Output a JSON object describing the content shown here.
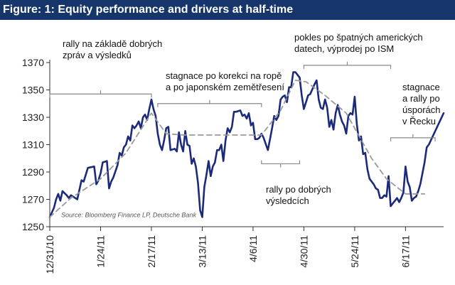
{
  "chart_data": {
    "type": "line",
    "title": "Figure: 1: Equity performance and drivers at half-time",
    "source": "Source: Bloomberg Finance LP, Deutsche Bank",
    "ylim": [
      1250,
      1370
    ],
    "yticks": [
      1250,
      1270,
      1290,
      1310,
      1330,
      1350,
      1370
    ],
    "xlim": [
      "2010-12-31",
      "2011-07-05"
    ],
    "xticks": [
      {
        "date": "2010-12-31",
        "label": "12/31/10"
      },
      {
        "date": "2011-01-24",
        "label": "1/24/11"
      },
      {
        "date": "2011-02-17",
        "label": "2/17/11"
      },
      {
        "date": "2011-03-13",
        "label": "3/13/11"
      },
      {
        "date": "2011-04-06",
        "label": "4/6/11"
      },
      {
        "date": "2011-04-30",
        "label": "4/30/11"
      },
      {
        "date": "2011-05-24",
        "label": "5/24/11"
      },
      {
        "date": "2011-06-17",
        "label": "6/17/11"
      }
    ],
    "grid": false,
    "series": [
      {
        "style": "solid",
        "color": "#1b2a7a",
        "points": [
          [
            "2010-12-31",
            1257
          ],
          [
            "2011-01-02",
            1264
          ],
          [
            "2011-01-03",
            1270
          ],
          [
            "2011-01-04",
            1274
          ],
          [
            "2011-01-05",
            1269
          ],
          [
            "2011-01-06",
            1276
          ],
          [
            "2011-01-08",
            1273
          ],
          [
            "2011-01-09",
            1271
          ],
          [
            "2011-01-10",
            1273
          ],
          [
            "2011-01-12",
            1271
          ],
          [
            "2011-01-13",
            1270
          ],
          [
            "2011-01-15",
            1284
          ],
          [
            "2011-01-16",
            1283
          ],
          [
            "2011-01-18",
            1293
          ],
          [
            "2011-01-21",
            1294
          ],
          [
            "2011-01-22",
            1281
          ],
          [
            "2011-01-23",
            1284
          ],
          [
            "2011-01-24",
            1289
          ],
          [
            "2011-01-25",
            1297
          ],
          [
            "2011-01-27",
            1298
          ],
          [
            "2011-01-28",
            1278
          ],
          [
            "2011-01-29",
            1283
          ],
          [
            "2011-01-30",
            1286
          ],
          [
            "2011-02-01",
            1295
          ],
          [
            "2011-02-02",
            1304
          ],
          [
            "2011-02-03",
            1302
          ],
          [
            "2011-02-04",
            1308
          ],
          [
            "2011-02-05",
            1310
          ],
          [
            "2011-02-06",
            1316
          ],
          [
            "2011-02-07",
            1313
          ],
          [
            "2011-02-08",
            1324
          ],
          [
            "2011-02-09",
            1322
          ],
          [
            "2011-02-10",
            1324
          ],
          [
            "2011-02-11",
            1327
          ],
          [
            "2011-02-12",
            1322
          ],
          [
            "2011-02-13",
            1330
          ],
          [
            "2011-02-14",
            1332
          ],
          [
            "2011-02-15",
            1328
          ],
          [
            "2011-02-16",
            1336
          ],
          [
            "2011-02-17",
            1343
          ],
          [
            "2011-02-18",
            1336
          ],
          [
            "2011-02-19",
            1331
          ],
          [
            "2011-02-20",
            1318
          ],
          [
            "2011-02-21",
            1310
          ],
          [
            "2011-02-22",
            1306
          ],
          [
            "2011-02-23",
            1313
          ],
          [
            "2011-02-24",
            1322
          ],
          [
            "2011-02-25",
            1323
          ],
          [
            "2011-02-26",
            1306
          ],
          [
            "2011-02-28",
            1307
          ],
          [
            "2011-03-01",
            1305
          ],
          [
            "2011-03-02",
            1319
          ],
          [
            "2011-03-03",
            1310
          ],
          [
            "2011-03-04",
            1305
          ],
          [
            "2011-03-05",
            1320
          ],
          [
            "2011-03-06",
            1310
          ],
          [
            "2011-03-07",
            1309
          ],
          [
            "2011-03-08",
            1296
          ],
          [
            "2011-03-09",
            1300
          ],
          [
            "2011-03-10",
            1294
          ],
          [
            "2011-03-11",
            1282
          ],
          [
            "2011-03-12",
            1262
          ],
          [
            "2011-03-13",
            1257
          ],
          [
            "2011-03-14",
            1279
          ],
          [
            "2011-03-15",
            1288
          ],
          [
            "2011-03-16",
            1298
          ],
          [
            "2011-03-17",
            1287
          ],
          [
            "2011-03-18",
            1294
          ],
          [
            "2011-03-19",
            1297
          ],
          [
            "2011-03-20",
            1306
          ],
          [
            "2011-03-21",
            1306
          ],
          [
            "2011-03-22",
            1310
          ],
          [
            "2011-03-23",
            1298
          ],
          [
            "2011-03-24",
            1313
          ],
          [
            "2011-03-25",
            1322
          ],
          [
            "2011-03-26",
            1319
          ],
          [
            "2011-03-27",
            1323
          ],
          [
            "2011-03-28",
            1334
          ],
          [
            "2011-03-29",
            1334
          ],
          [
            "2011-03-31",
            1335
          ],
          [
            "2011-04-01",
            1331
          ],
          [
            "2011-04-02",
            1332
          ],
          [
            "2011-04-03",
            1329
          ],
          [
            "2011-04-04",
            1333
          ],
          [
            "2011-04-05",
            1324
          ],
          [
            "2011-04-06",
            1326
          ],
          [
            "2011-04-07",
            1314
          ],
          [
            "2011-04-08",
            1314
          ],
          [
            "2011-04-09",
            1315
          ],
          [
            "2011-04-10",
            1318
          ],
          [
            "2011-04-11",
            1315
          ],
          [
            "2011-04-13",
            1306
          ],
          [
            "2011-04-14",
            1314
          ],
          [
            "2011-04-15",
            1322
          ],
          [
            "2011-04-16",
            1331
          ],
          [
            "2011-04-17",
            1328
          ],
          [
            "2011-04-18",
            1331
          ],
          [
            "2011-04-19",
            1343
          ],
          [
            "2011-04-20",
            1345
          ],
          [
            "2011-04-21",
            1346
          ],
          [
            "2011-04-22",
            1341
          ],
          [
            "2011-04-23",
            1352
          ],
          [
            "2011-04-24",
            1352
          ],
          [
            "2011-04-25",
            1363
          ],
          [
            "2011-04-26",
            1363
          ],
          [
            "2011-04-27",
            1361
          ],
          [
            "2011-04-28",
            1359
          ],
          [
            "2011-04-29",
            1346
          ],
          [
            "2011-04-30",
            1336
          ],
          [
            "2011-05-01",
            1341
          ],
          [
            "2011-05-02",
            1346
          ],
          [
            "2011-05-03",
            1347
          ],
          [
            "2011-05-05",
            1354
          ],
          [
            "2011-05-06",
            1357
          ],
          [
            "2011-05-07",
            1343
          ],
          [
            "2011-05-08",
            1337
          ],
          [
            "2011-05-09",
            1336
          ],
          [
            "2011-05-10",
            1343
          ],
          [
            "2011-05-11",
            1337
          ],
          [
            "2011-05-12",
            1323
          ],
          [
            "2011-05-13",
            1328
          ],
          [
            "2011-05-14",
            1321
          ],
          [
            "2011-05-15",
            1333
          ],
          [
            "2011-05-16",
            1339
          ],
          [
            "2011-05-17",
            1332
          ],
          [
            "2011-05-18",
            1327
          ],
          [
            "2011-05-19",
            1324
          ],
          [
            "2011-05-20",
            1318
          ],
          [
            "2011-05-21",
            1331
          ],
          [
            "2011-05-22",
            1333
          ],
          [
            "2011-05-23",
            1332
          ],
          [
            "2011-05-24",
            1345
          ],
          [
            "2011-05-25",
            1325
          ],
          [
            "2011-05-26",
            1313
          ],
          [
            "2011-05-27",
            1316
          ],
          [
            "2011-05-28",
            1303
          ],
          [
            "2011-05-29",
            1304
          ],
          [
            "2011-05-30",
            1292
          ],
          [
            "2011-05-31",
            1285
          ],
          [
            "2011-06-02",
            1281
          ],
          [
            "2011-06-03",
            1278
          ],
          [
            "2011-06-04",
            1277
          ],
          [
            "2011-06-05",
            1271
          ],
          [
            "2011-06-06",
            1271
          ],
          [
            "2011-06-07",
            1273
          ],
          [
            "2011-06-08",
            1272
          ],
          [
            "2011-06-09",
            1287
          ],
          [
            "2011-06-10",
            1265
          ],
          [
            "2011-06-12",
            1269
          ],
          [
            "2011-06-13",
            1271
          ],
          [
            "2011-06-14",
            1268
          ],
          [
            "2011-06-15",
            1271
          ],
          [
            "2011-06-16",
            1275
          ],
          [
            "2011-06-17",
            1294
          ],
          [
            "2011-06-18",
            1283
          ],
          [
            "2011-06-19",
            1279
          ],
          [
            "2011-06-20",
            1269
          ],
          [
            "2011-06-21",
            1271
          ],
          [
            "2011-06-22",
            1272
          ],
          [
            "2011-06-23",
            1276
          ],
          [
            "2011-06-24",
            1281
          ],
          [
            "2011-06-26",
            1297
          ],
          [
            "2011-06-27",
            1308
          ],
          [
            "2011-06-28",
            1310
          ],
          [
            "2011-07-05",
            1333
          ]
        ]
      },
      {
        "style": "dashed",
        "color": "#9a9a9a",
        "points": [
          [
            "2010-12-31",
            1257
          ],
          [
            "2011-01-10",
            1271
          ],
          [
            "2011-01-24",
            1285
          ],
          [
            "2011-02-05",
            1304
          ],
          [
            "2011-02-17",
            1333
          ],
          [
            "2011-02-24",
            1318
          ],
          [
            "2011-03-04",
            1317
          ],
          [
            "2011-04-10",
            1317
          ],
          [
            "2011-04-19",
            1335
          ],
          [
            "2011-04-26",
            1357
          ],
          [
            "2011-05-01",
            1356
          ],
          [
            "2011-05-10",
            1346
          ],
          [
            "2011-05-20",
            1333
          ],
          [
            "2011-06-01",
            1300
          ],
          [
            "2011-06-08",
            1285
          ],
          [
            "2011-06-17",
            1274
          ],
          [
            "2011-06-26",
            1274
          ]
        ]
      }
    ],
    "annotations": [
      {
        "lines": [
          "rally na základě dobrých",
          "zpráv a výsledků"
        ],
        "range": [
          "2010-12-31",
          "2011-02-17"
        ],
        "bracket_y": 1347
      },
      {
        "lines": [
          "stagnace po korekci na ropě",
          "a po japonském zemětřesení"
        ],
        "range": [
          "2011-02-20",
          "2011-04-10"
        ],
        "bracket_y": 1340
      },
      {
        "lines": [
          "pokles po špatných amerických",
          "datech, výprodej po ISM"
        ],
        "range": [
          "2011-04-30",
          "2011-06-10"
        ],
        "bracket_y": 1368
      },
      {
        "lines": [
          "rally po dobrých",
          "výsledcích"
        ],
        "range": [
          "2011-04-10",
          "2011-04-28"
        ],
        "bracket_y": 1296
      },
      {
        "lines": [
          "stagnace",
          "a rally po",
          "úsporách",
          "v Řecku"
        ],
        "range": [
          "2011-06-10",
          "2011-07-01"
        ],
        "bracket_y": 1315
      }
    ]
  }
}
